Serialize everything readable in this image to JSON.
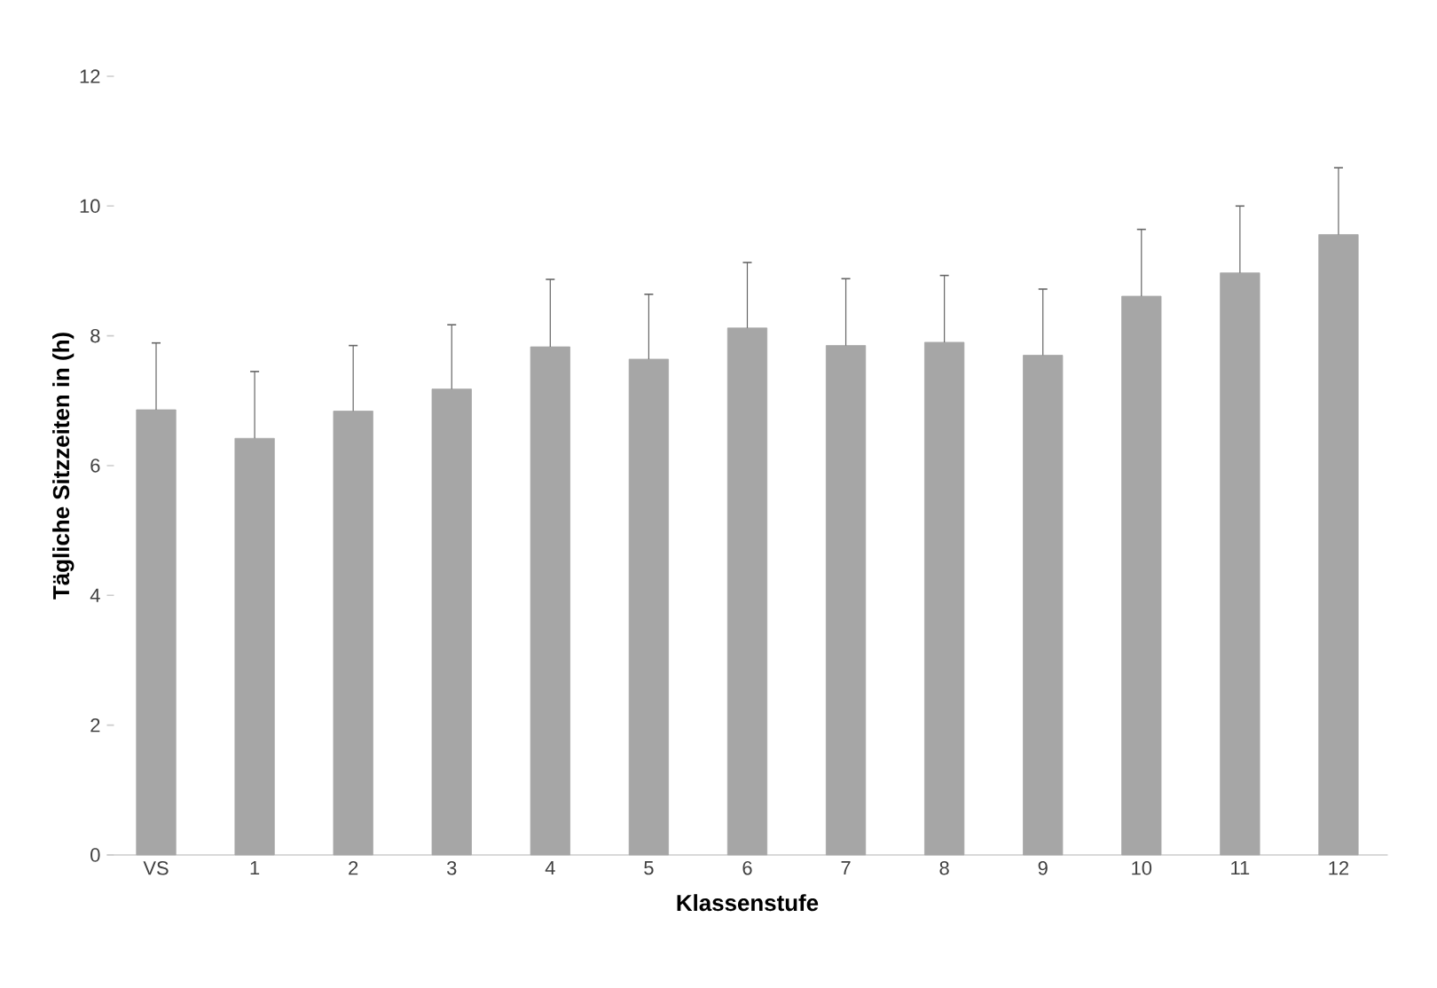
{
  "chart_data": {
    "type": "bar",
    "xlabel": "Klassenstufe",
    "ylabel": "Tägliche Sitzzeiten in (h)",
    "categories": [
      "VS",
      "1",
      "2",
      "3",
      "4",
      "5",
      "6",
      "7",
      "8",
      "9",
      "10",
      "11",
      "12"
    ],
    "values": [
      6.86,
      6.42,
      6.84,
      7.18,
      7.83,
      7.64,
      8.12,
      7.85,
      7.9,
      7.7,
      8.61,
      8.97,
      9.56
    ],
    "errors": [
      [
        6.86,
        7.89
      ],
      [
        6.42,
        7.45
      ],
      [
        6.84,
        7.85
      ],
      [
        7.18,
        8.17
      ],
      [
        7.83,
        8.87
      ],
      [
        7.64,
        8.64
      ],
      [
        8.12,
        9.13
      ],
      [
        7.85,
        8.88
      ],
      [
        7.9,
        8.93
      ],
      [
        7.7,
        8.72
      ],
      [
        8.61,
        9.64
      ],
      [
        8.97,
        10.0
      ],
      [
        9.56,
        10.59
      ]
    ],
    "color": "#a6a6a6",
    "ylim": [
      0,
      12
    ],
    "yticks": [
      0,
      2,
      4,
      6,
      8,
      10,
      12
    ],
    "grid": false
  }
}
